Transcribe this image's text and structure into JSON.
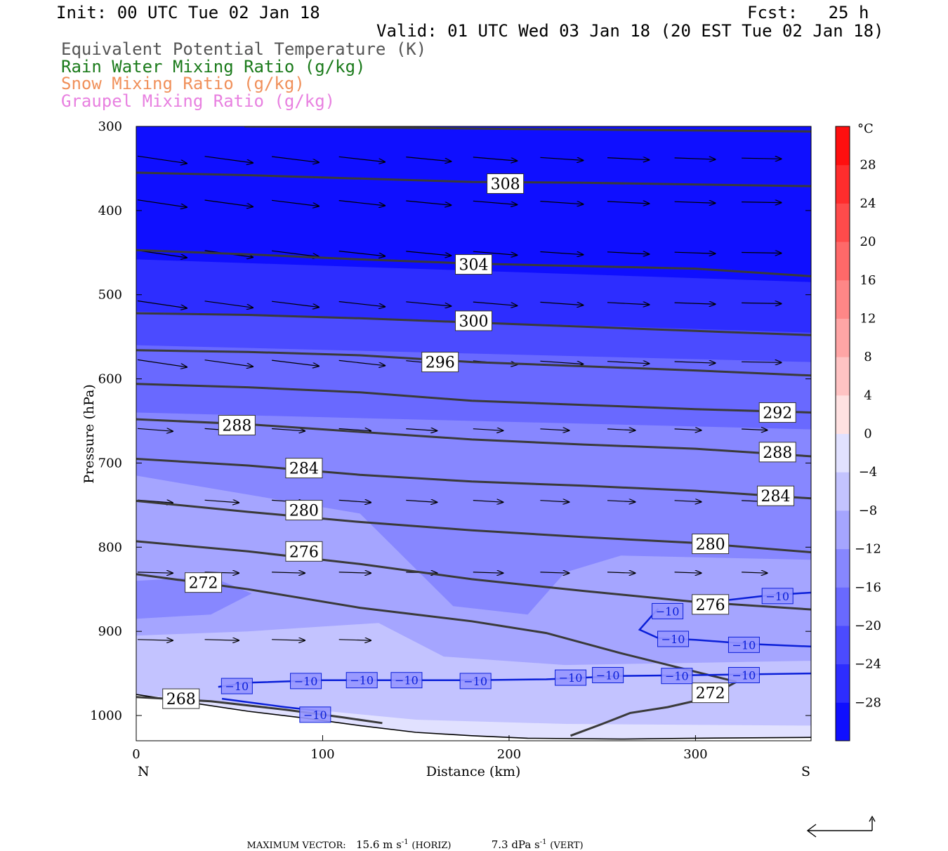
{
  "header": {
    "init": "Init: 00 UTC Tue 02 Jan 18",
    "fcst": "Fcst:   25 h",
    "valid": "Valid: 01 UTC Wed 03 Jan 18 (20 EST Tue 02 Jan 18)",
    "fields": [
      {
        "label": "Equivalent Potential Temperature (K)",
        "color": "#555555"
      },
      {
        "label": "Rain Water Mixing Ratio (g/kg)",
        "color": "#1a7a1a"
      },
      {
        "label": "Snow Mixing Ratio (g/kg)",
        "color": "#f0905a"
      },
      {
        "label": "Graupel Mixing Ratio (g/kg)",
        "color": "#e880e0"
      }
    ]
  },
  "chart_data": {
    "type": "cross-section contour",
    "xlabel": "Distance (km)",
    "ylabel": "Pressure (hPa)",
    "xlim": [
      0,
      362
    ],
    "ylim": [
      1030,
      300
    ],
    "x_ticks": [
      "0",
      "100",
      "200",
      "300"
    ],
    "y_ticks": [
      "300",
      "400",
      "500",
      "600",
      "700",
      "800",
      "900",
      "1000"
    ],
    "x_end_labels": {
      "left": "N",
      "right": "S"
    },
    "colorbar": {
      "unit": "°C",
      "levels": [
        -32,
        -28,
        -24,
        -20,
        -16,
        -12,
        -8,
        -4,
        0,
        4,
        8,
        12,
        16,
        20,
        24,
        28,
        32
      ],
      "tick_labels": [
        "28",
        "24",
        "20",
        "16",
        "12",
        "8",
        "4",
        "0",
        "−4",
        "−8",
        "−12",
        "−16",
        "−20",
        "−24",
        "−28"
      ]
    },
    "theta_e_contours": [
      {
        "value": 308,
        "label": "308",
        "line": [
          [
            0,
            355
          ],
          [
            60,
            358
          ],
          [
            120,
            362
          ],
          [
            180,
            366
          ],
          [
            240,
            367
          ],
          [
            300,
            369
          ],
          [
            362,
            371
          ]
        ],
        "label_pos": [
          198,
          368
        ]
      },
      {
        "value": 304,
        "label": "304",
        "line": [
          [
            0,
            447
          ],
          [
            60,
            452
          ],
          [
            120,
            458
          ],
          [
            180,
            463
          ],
          [
            240,
            466
          ],
          [
            300,
            469
          ],
          [
            362,
            478
          ]
        ],
        "label_pos": [
          181,
          464
        ]
      },
      {
        "value": 300,
        "label": "300",
        "line": [
          [
            0,
            522
          ],
          [
            60,
            524
          ],
          [
            120,
            528
          ],
          [
            180,
            533
          ],
          [
            240,
            538
          ],
          [
            300,
            543
          ],
          [
            362,
            548
          ]
        ],
        "label_pos": [
          181,
          531
        ]
      },
      {
        "value": 296,
        "label": "296",
        "line": [
          [
            0,
            566
          ],
          [
            60,
            568
          ],
          [
            120,
            572
          ],
          [
            180,
            580
          ],
          [
            240,
            585
          ],
          [
            300,
            590
          ],
          [
            362,
            596
          ]
        ],
        "label_pos": [
          163,
          580
        ]
      },
      {
        "value": 292,
        "label": "292",
        "line": [
          [
            0,
            606
          ],
          [
            60,
            610
          ],
          [
            120,
            616
          ],
          [
            180,
            626
          ],
          [
            240,
            631
          ],
          [
            300,
            636
          ],
          [
            362,
            640
          ]
        ],
        "label_pos": [
          344,
          640
        ]
      },
      {
        "value": 288,
        "label": "288",
        "line": [
          [
            0,
            648
          ],
          [
            60,
            654
          ],
          [
            120,
            663
          ],
          [
            180,
            672
          ],
          [
            240,
            678
          ],
          [
            300,
            683
          ],
          [
            362,
            692
          ]
        ],
        "label_pos": [
          54,
          655
        ]
      },
      {
        "value": 288,
        "label": "288",
        "line": [],
        "label_pos": [
          344,
          687
        ]
      },
      {
        "value": 284,
        "label": "284",
        "line": [
          [
            0,
            695
          ],
          [
            60,
            703
          ],
          [
            120,
            714
          ],
          [
            180,
            722
          ],
          [
            240,
            727
          ],
          [
            300,
            733
          ],
          [
            362,
            742
          ]
        ],
        "label_pos": [
          90,
          706
        ]
      },
      {
        "value": 284,
        "label": "284",
        "line": [],
        "label_pos": [
          343,
          739
        ]
      },
      {
        "value": 280,
        "label": "280",
        "line": [
          [
            0,
            745
          ],
          [
            60,
            758
          ],
          [
            120,
            770
          ],
          [
            180,
            780
          ],
          [
            240,
            788
          ],
          [
            300,
            795
          ],
          [
            362,
            806
          ]
        ],
        "label_pos": [
          90,
          756
        ]
      },
      {
        "value": 280,
        "label": "280",
        "line": [],
        "label_pos": [
          308,
          796
        ]
      },
      {
        "value": 276,
        "label": "276",
        "line": [
          [
            0,
            793
          ],
          [
            60,
            805
          ],
          [
            120,
            820
          ],
          [
            180,
            838
          ],
          [
            240,
            852
          ],
          [
            300,
            865
          ],
          [
            362,
            874
          ]
        ],
        "label_pos": [
          90,
          805
        ]
      },
      {
        "value": 276,
        "label": "276",
        "line": [],
        "label_pos": [
          308,
          868
        ]
      },
      {
        "value": 272,
        "label": "272",
        "line": [
          [
            0,
            832
          ],
          [
            60,
            850
          ],
          [
            120,
            872
          ],
          [
            180,
            888
          ],
          [
            220,
            902
          ],
          [
            260,
            926
          ],
          [
            300,
            948
          ],
          [
            322,
            960
          ]
        ],
        "label_pos": [
          36,
          842
        ]
      },
      {
        "value": 272,
        "label": "272",
        "line": [
          [
            233,
            1024
          ],
          [
            250,
            1010
          ],
          [
            265,
            997
          ],
          [
            285,
            990
          ],
          [
            305,
            980
          ],
          [
            322,
            960
          ]
        ],
        "label_pos": [
          308,
          973
        ]
      },
      {
        "value": 268,
        "label": "268",
        "line": [
          [
            0,
            978
          ],
          [
            40,
            983
          ],
          [
            80,
            993
          ],
          [
            110,
            1002
          ],
          [
            132,
            1009
          ]
        ],
        "label_pos": [
          24,
          980
        ]
      }
    ],
    "temperature_contours": [
      {
        "value": -10,
        "label": "−10",
        "line": [
          [
            44,
            966
          ],
          [
            60,
            961
          ],
          [
            100,
            958
          ],
          [
            140,
            958
          ],
          [
            180,
            958
          ],
          [
            220,
            957
          ],
          [
            260,
            953
          ],
          [
            300,
            952
          ],
          [
            362,
            950
          ]
        ],
        "labels_at": [
          [
            54,
            965
          ],
          [
            91,
            959
          ],
          [
            121,
            958
          ],
          [
            145,
            958
          ],
          [
            182,
            959
          ],
          [
            233,
            955
          ],
          [
            253,
            952
          ],
          [
            290,
            953
          ],
          [
            326,
            952
          ]
        ]
      },
      {
        "value": -10,
        "label": "−10",
        "line": [
          [
            280,
            873
          ],
          [
            270,
            898
          ],
          [
            280,
            908
          ],
          [
            300,
            910
          ],
          [
            330,
            915
          ],
          [
            362,
            918
          ]
        ],
        "labels_at": [
          [
            285,
            876
          ],
          [
            288,
            909
          ],
          [
            326,
            916
          ]
        ]
      },
      {
        "value": -10,
        "label": "−10",
        "line": [
          [
            305,
            866
          ],
          [
            340,
            857
          ],
          [
            362,
            854
          ]
        ],
        "labels_at": [
          [
            344,
            858
          ]
        ]
      },
      {
        "value": -10,
        "label": "−10",
        "line": [
          [
            46,
            980
          ],
          [
            80,
            990
          ],
          [
            100,
            995
          ]
        ],
        "labels_at": [
          [
            96,
            999
          ]
        ]
      }
    ],
    "wind_vectors_note": "circulation vectors in section plane",
    "max_vector": {
      "label": "MAXIMUM VECTOR:",
      "horiz": "15.6 m s",
      "horiz_exp": "-1",
      "horiz_tag": "(HORIZ)",
      "vert": "7.3 dPa s",
      "vert_exp": "-1",
      "vert_tag": "(VERT)"
    }
  }
}
